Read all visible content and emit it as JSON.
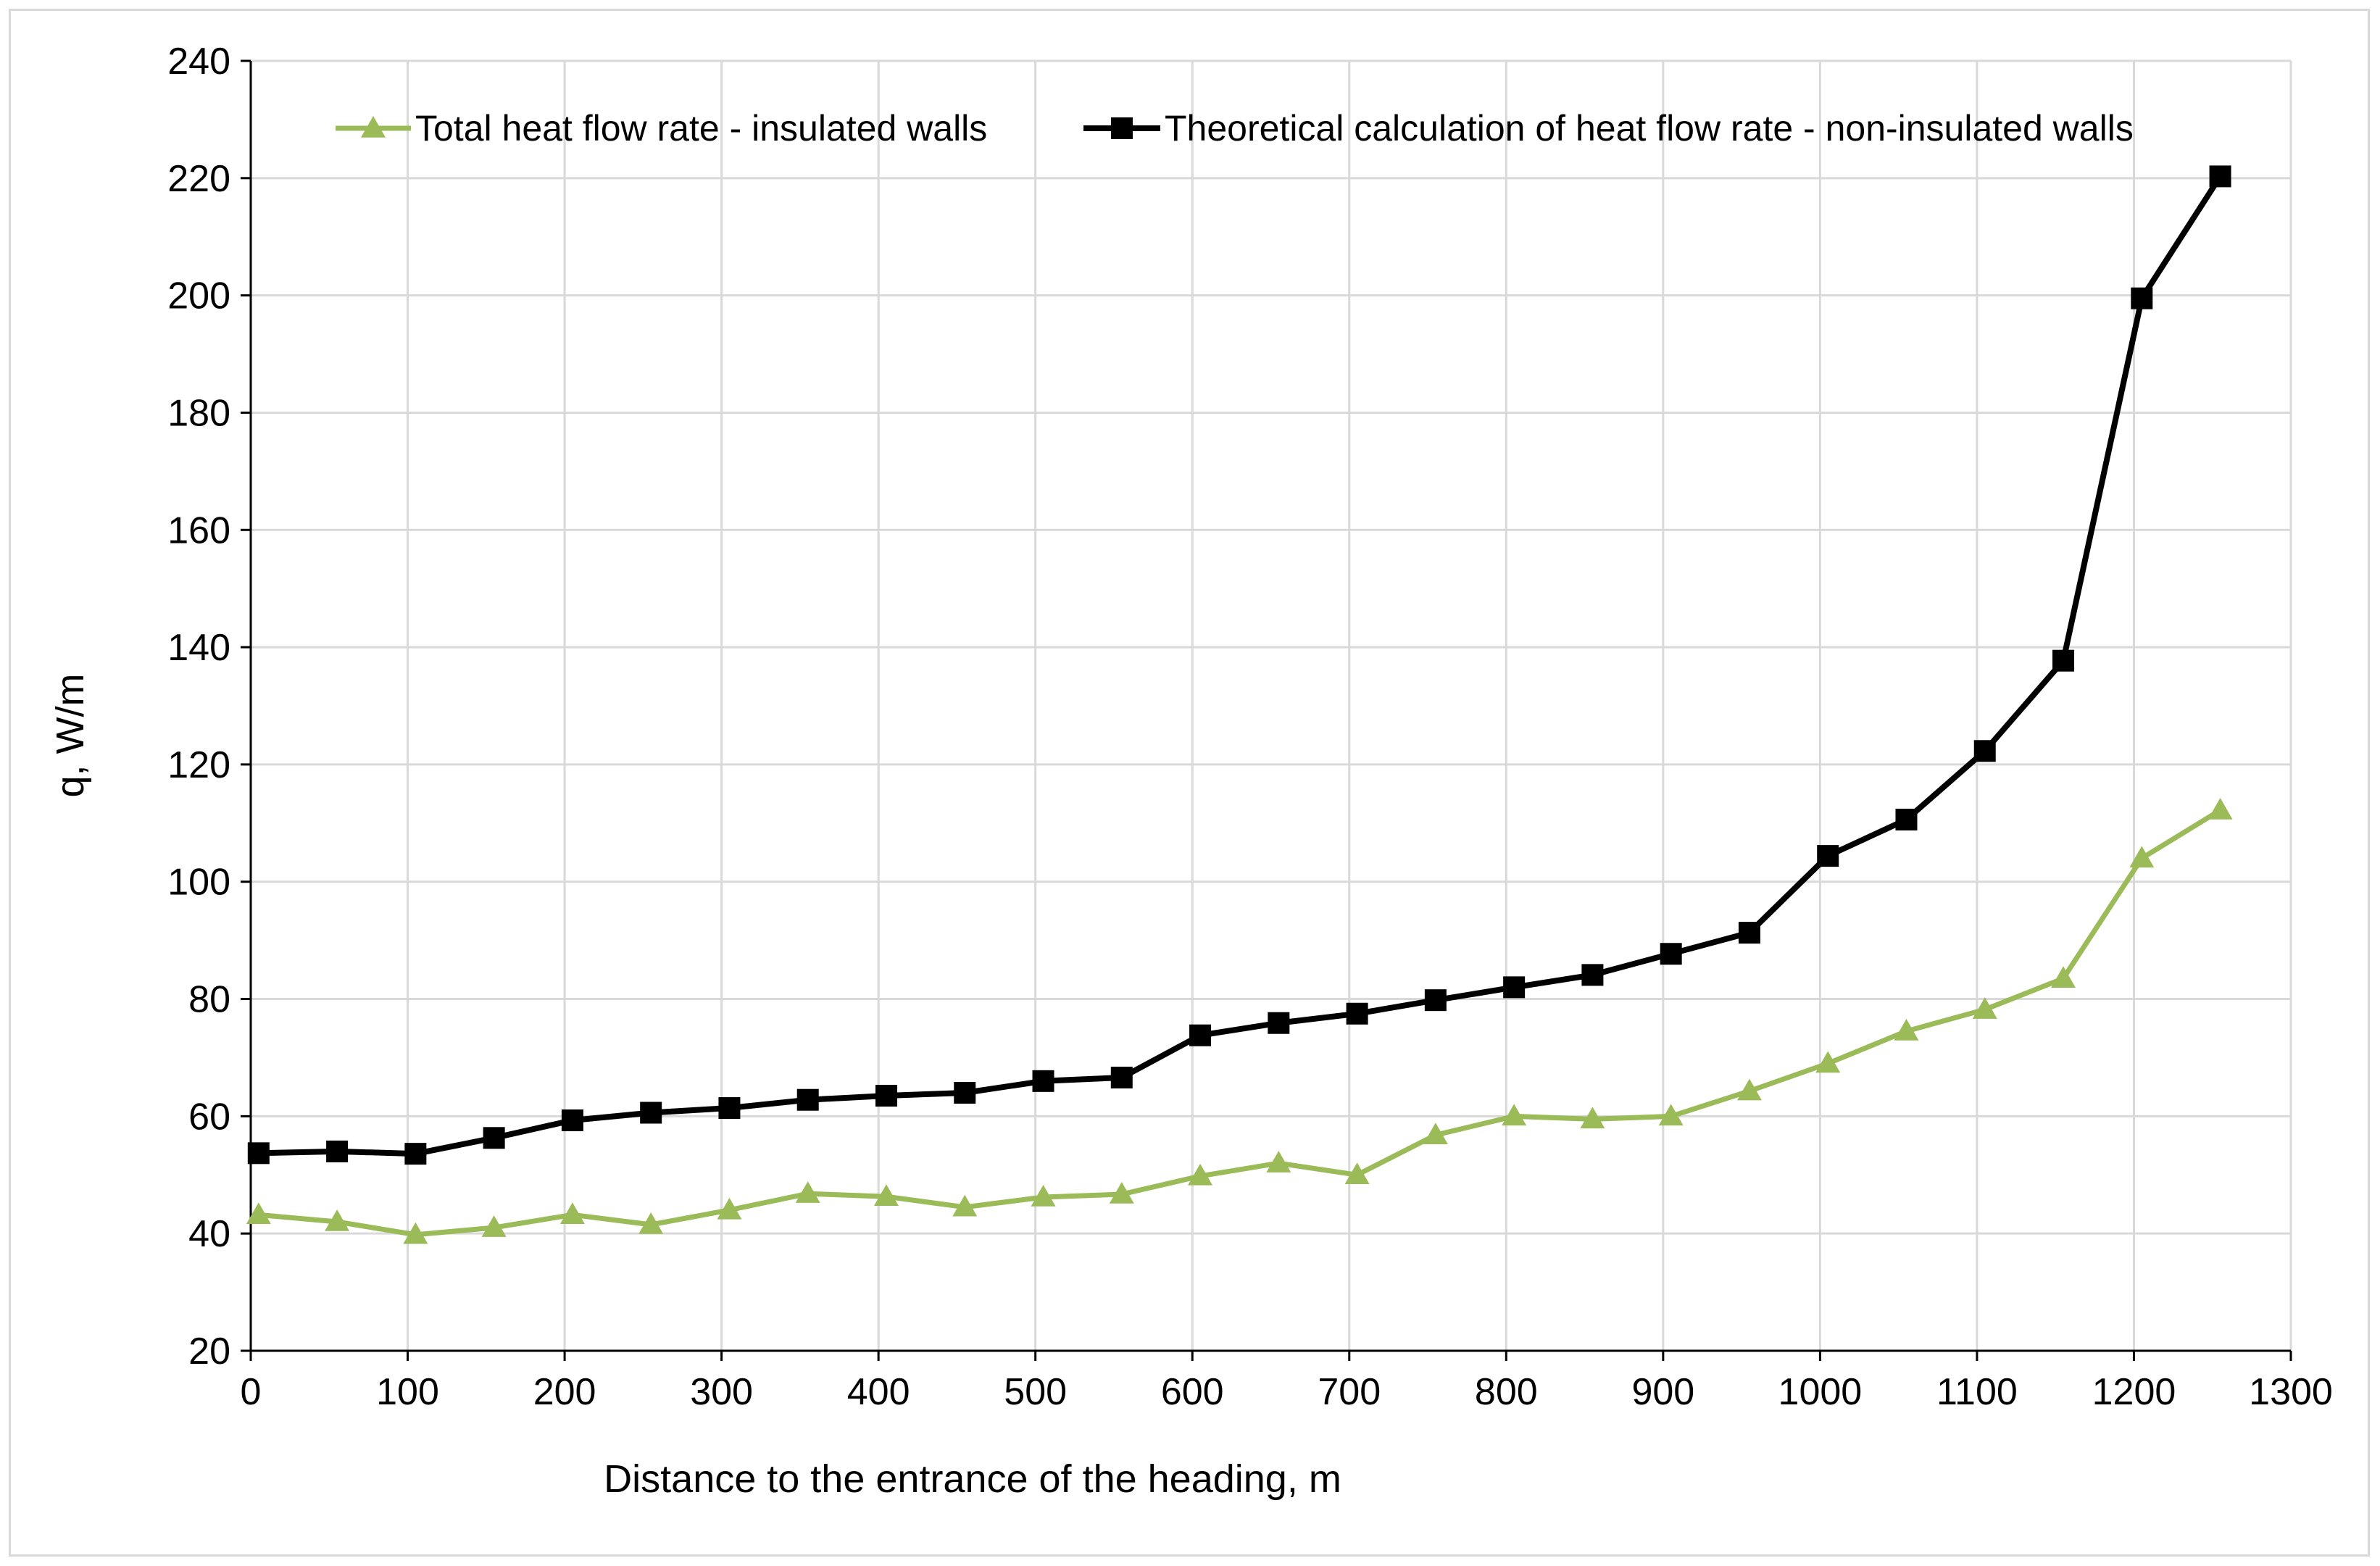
{
  "chart_data": {
    "type": "line",
    "title": "",
    "xlabel": "Distance to the entrance of the heading, m",
    "ylabel": "q, W/m",
    "xlim": [
      0,
      1300
    ],
    "ylim": [
      20,
      240
    ],
    "x_ticks": [
      0,
      100,
      200,
      300,
      400,
      500,
      600,
      700,
      800,
      900,
      1000,
      1100,
      1200,
      1300
    ],
    "y_ticks": [
      20,
      40,
      60,
      80,
      100,
      120,
      140,
      160,
      180,
      200,
      220,
      240
    ],
    "grid": true,
    "legend_position": "top",
    "x": [
      5,
      55,
      105,
      155,
      205,
      255,
      305,
      355,
      405,
      455,
      505,
      555,
      605,
      655,
      705,
      755,
      805,
      855,
      905,
      955,
      1005,
      1055,
      1105,
      1155,
      1205,
      1255
    ],
    "series": [
      {
        "name": "Total heat flow rate - insulated walls",
        "color": "#9bbb59",
        "marker": "triangle",
        "values": [
          43.2,
          42.0,
          39.8,
          41.0,
          43.2,
          41.5,
          44.0,
          46.8,
          46.3,
          44.5,
          46.2,
          46.7,
          49.8,
          52.0,
          50.0,
          56.8,
          60.0,
          59.5,
          60.0,
          64.3,
          69.0,
          74.5,
          78.2,
          83.5,
          104.0,
          112.2
        ]
      },
      {
        "name": "Theoretical calculation of heat flow rate - non-insulated walls",
        "color": "#000000",
        "marker": "square",
        "values": [
          53.7,
          54.0,
          53.6,
          56.3,
          59.3,
          60.6,
          61.4,
          62.8,
          63.5,
          64.0,
          66.0,
          66.6,
          73.8,
          75.9,
          77.5,
          79.8,
          82.0,
          84.1,
          87.7,
          91.3,
          104.4,
          110.6,
          122.3,
          137.7,
          199.5,
          220.3
        ]
      }
    ]
  }
}
